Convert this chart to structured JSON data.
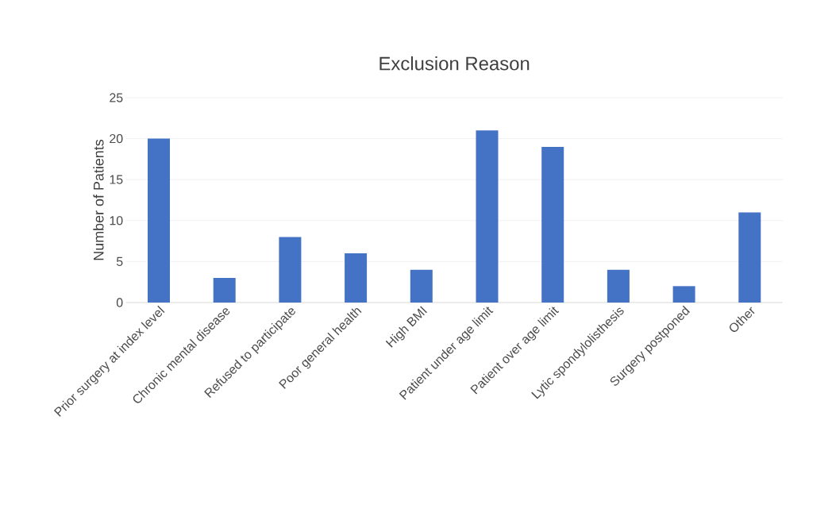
{
  "chart_data": {
    "type": "bar",
    "title": "Exclusion Reason",
    "ylabel": "Number of Patients",
    "categories": [
      "Prior surgery at index level",
      "Chronic mental disease",
      "Refused to participate",
      "Poor general health",
      "High BMI",
      "Patient under age limit",
      "Patient over age limit",
      "Lytic spondylolisthesis",
      "Surgery postponed",
      "Other"
    ],
    "values": [
      20,
      3,
      8,
      6,
      4,
      21,
      19,
      4,
      2,
      11
    ],
    "color": "#4472c4",
    "ylim": [
      0,
      25
    ],
    "yticks": [
      0,
      5,
      10,
      15,
      20,
      25
    ],
    "grid": "y"
  }
}
